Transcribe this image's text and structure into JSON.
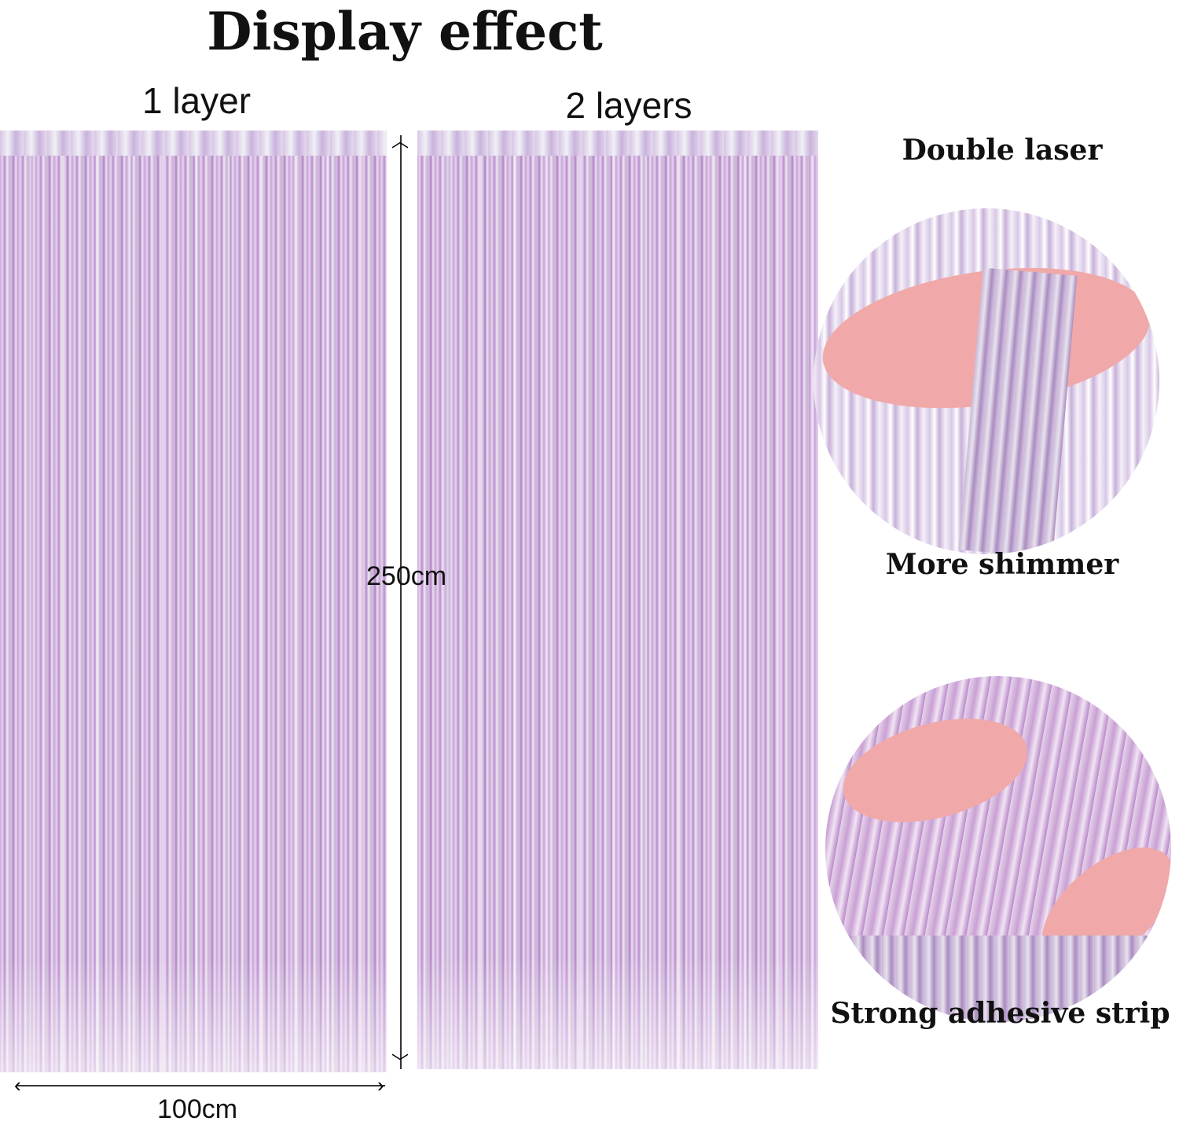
{
  "title": "Display effect",
  "panels": [
    {
      "label": "1 layer"
    },
    {
      "label": "2 layers"
    }
  ],
  "dimensions": {
    "height": "250cm",
    "width": "100cm"
  },
  "features": {
    "top_caption": "Double laser",
    "middle_caption": "More shimmer",
    "bottom_caption": "Strong adhesive strip"
  },
  "colors": {
    "curtain": "#c9a6d9",
    "skin": "#f0a9a8"
  }
}
